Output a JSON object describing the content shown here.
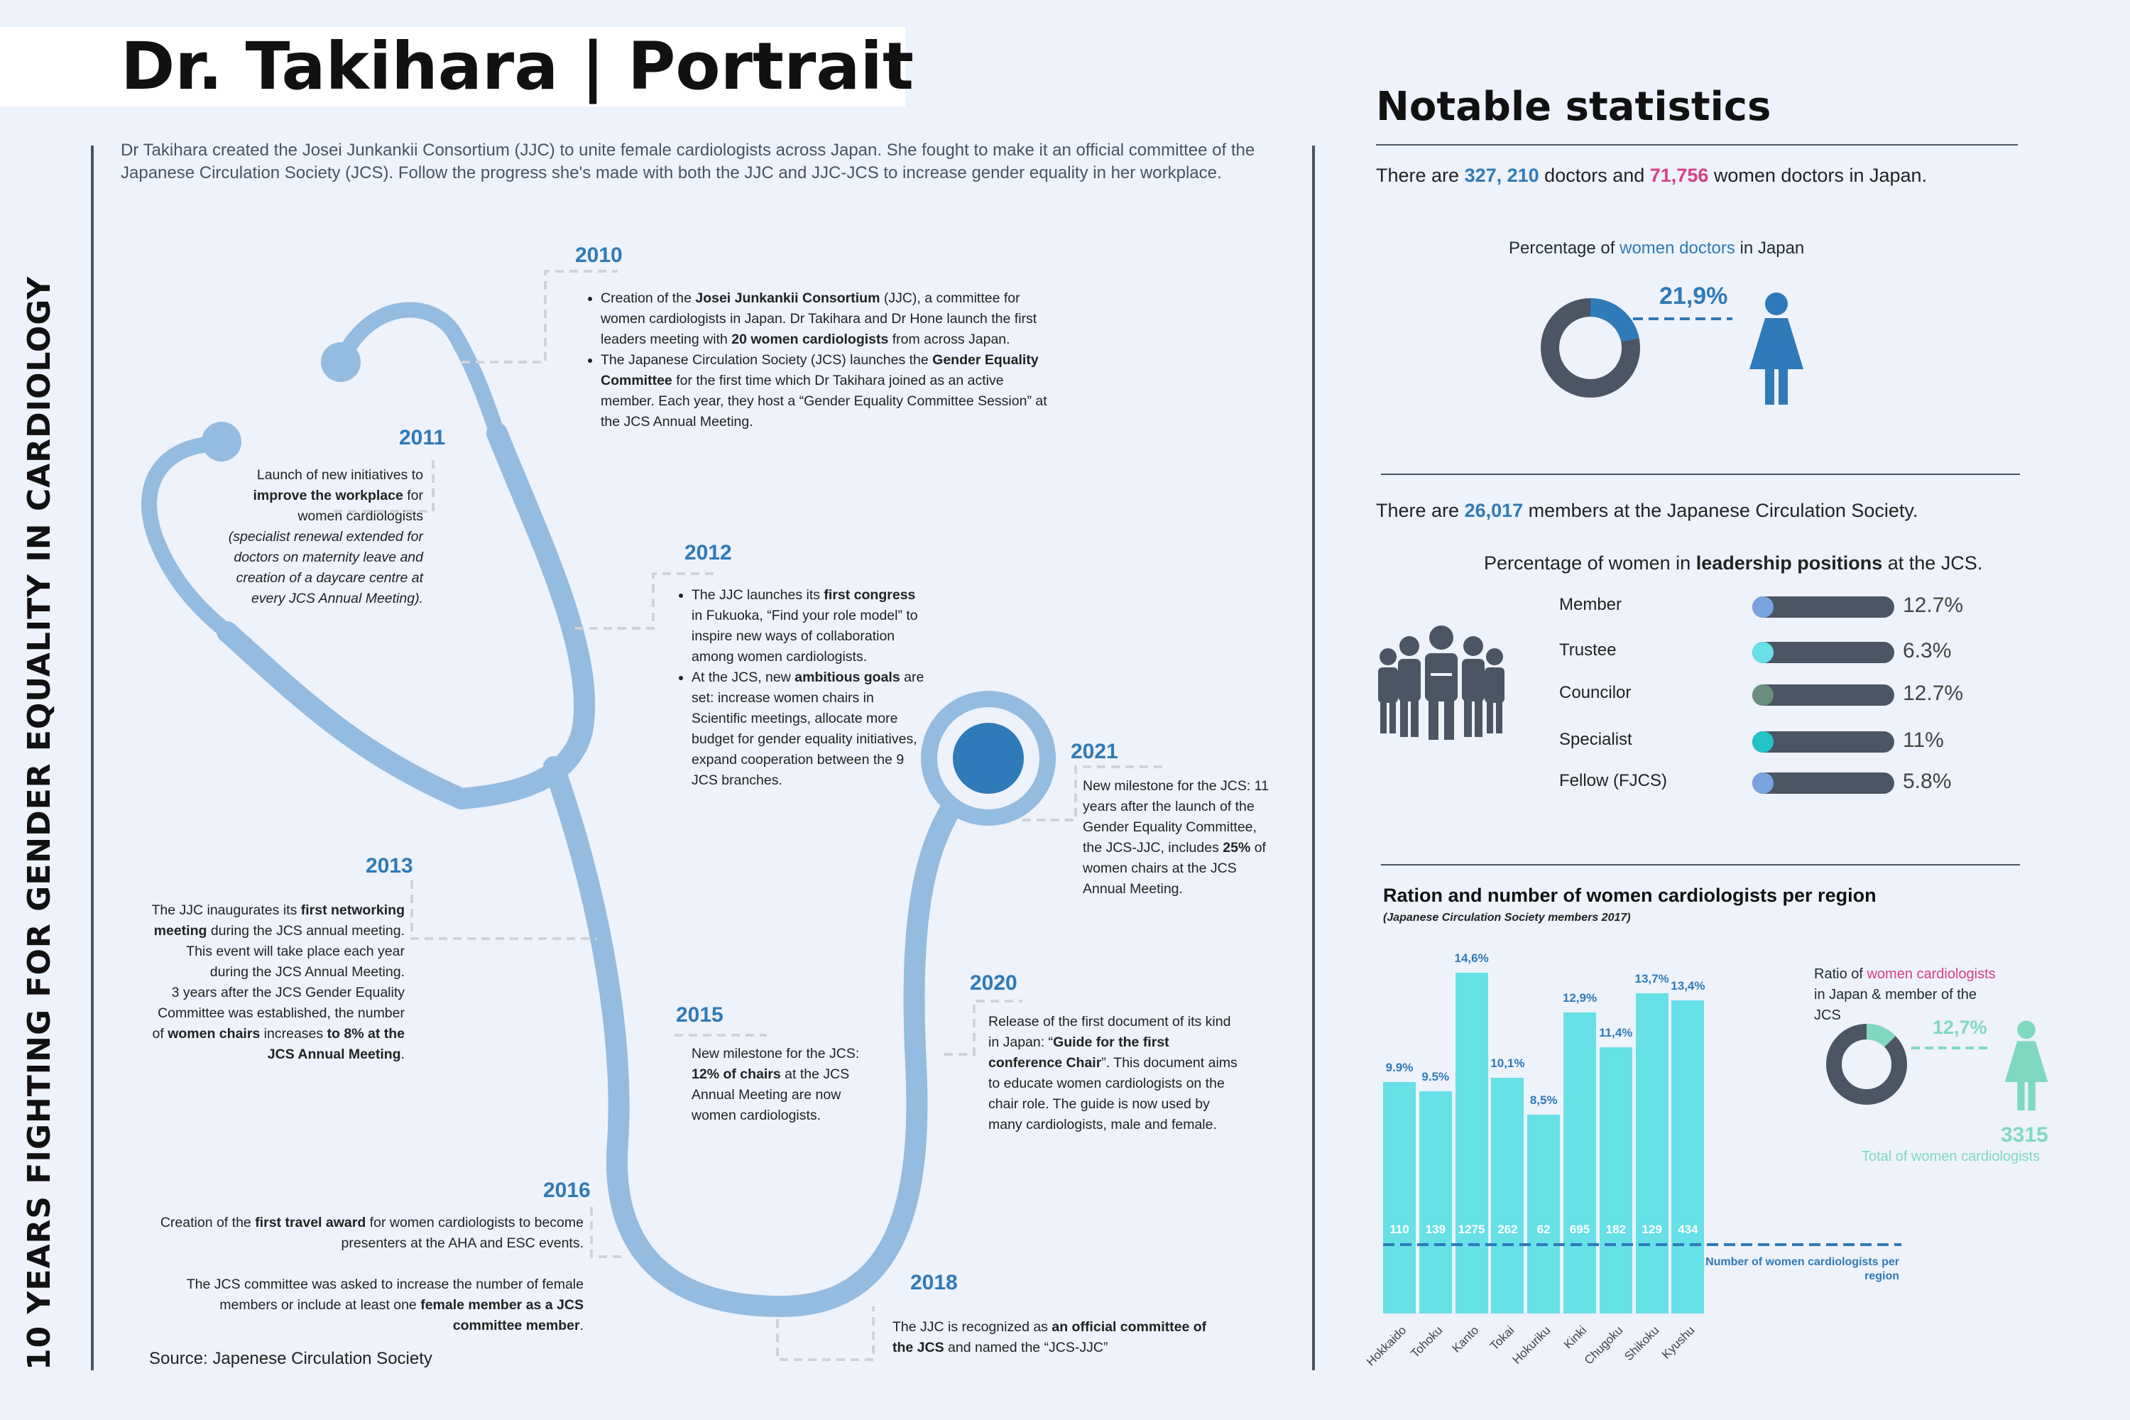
{
  "header": {
    "title": "Dr. Takihara | Portrait",
    "intro": "Dr Takihara created the Josei Junkankii Consortium (JJC) to unite female cardiologists across Japan. She fought to make it an official committee of the Japanese Circulation Society (JCS). Follow the progress she's made with both the JJC and JJC-JCS to increase gender equality in her workplace."
  },
  "vertical_title": "10 YEARS FIGHTING FOR GENDER EQUALITY IN CARDIOLOGY",
  "timeline": {
    "y2010": {
      "year": "2010",
      "b1_a": "Creation of the ",
      "b1_b": "Josei Junkankii Consortium",
      "b1_c": " (JJC), a committee for women cardiologists in Japan. Dr Takihara and Dr Hone launch the first leaders meeting with ",
      "b1_d": "20 women cardiologists",
      "b1_e": " from across Japan.",
      "b2_a": "The Japanese Circulation Society (JCS) launches the ",
      "b2_b": "Gender Equality Committee",
      "b2_c": " for the first time which Dr Takihara joined as an active member. Each year, they host a “Gender Equality Committee Session” at the JCS Annual Meeting."
    },
    "y2011": {
      "year": "2011",
      "a": "Launch of new initiatives to ",
      "b": "improve the workplace",
      "c": " for women cardiologists",
      "d": "(specialist renewal extended for doctors on maternity leave and creation of a daycare centre at every JCS Annual Meeting)."
    },
    "y2012": {
      "year": "2012",
      "b1_a": "The JJC launches its ",
      "b1_b": "first congress",
      "b1_c": " in Fukuoka, “Find your role model” to inspire new ways of collaboration among women cardiologists.",
      "b2_a": "At the JCS, new ",
      "b2_b": "ambitious goals",
      "b2_c": " are set: increase women chairs in Scientific meetings, allocate more budget for gender equality initiatives, expand cooperation between the 9 JCS branches."
    },
    "y2013": {
      "year": "2013",
      "a": "The JJC inaugurates its ",
      "b": "first networking meeting",
      "c": " during the JCS annual meeting. This event will take place each year during the JCS Annual Meeting.",
      "d": "3 years after the JCS Gender Equality Committee was established, the number of ",
      "e": "women chairs",
      "f": " increases ",
      "g": "to 8% at the JCS Annual Meeting",
      "h": "."
    },
    "y2015": {
      "year": "2015",
      "a": "New milestone for the JCS: ",
      "b": "12% of chairs",
      "c": " at the JCS Annual Meeting are now women cardiologists."
    },
    "y2016": {
      "year": "2016",
      "a": "Creation of the ",
      "b": "first travel award",
      "c": " for women cardiologists to become presenters at the AHA and ESC events.",
      "d": "The JCS committee was asked to increase the number of female members or include at least one ",
      "e": "female member as a JCS committee member",
      "f": "."
    },
    "y2018": {
      "year": "2018",
      "a": "The JJC is recognized as ",
      "b": "an official committee of the JCS",
      "c": " and named the “JCS-JJC”"
    },
    "y2020": {
      "year": "2020",
      "a": "Release of the first document of its kind in Japan: “",
      "b": "Guide for the first conference Chair",
      "c": "”. This document aims to educate women cardiologists on the chair role. The guide is now used by many cardiologists, male and female."
    },
    "y2021": {
      "year": "2021",
      "a": "New milestone for the JCS: 11 years after the launch of the Gender Equality Committee, the JCS-JJC, includes ",
      "b": "25%",
      "c": " of women chairs at the JCS Annual Meeting."
    }
  },
  "source": "Source: Japenese Circulation Society",
  "stats": {
    "title": "Notable statistics",
    "doctors_line": {
      "a": "There are ",
      "doctors": "327, 210",
      "b": " doctors and ",
      "women": "71,756",
      "c": " women doctors in Japan."
    },
    "women_doctors": {
      "label_a": "Percentage of ",
      "label_b": "women doctors",
      "label_c": " in Japan",
      "value": "21,9%",
      "fraction": 0.219,
      "color": "#2f7ab8"
    },
    "members_line": {
      "a": "There are ",
      "members": "26,017",
      "b": " members at the Japanese Circulation Society."
    },
    "leadership": {
      "title_a": "Percentage of women in ",
      "title_b": "leadership positions",
      "title_c": " at the JCS.",
      "rows": [
        {
          "label": "Member",
          "value": "12.7%",
          "dot": "#7aa2e0"
        },
        {
          "label": "Trustee",
          "value": "6.3%",
          "dot": "#67e0e8"
        },
        {
          "label": "Councilor",
          "value": "12.7%",
          "dot": "#6b8f7e"
        },
        {
          "label": "Specialist",
          "value": "11%",
          "dot": "#22c2c7"
        },
        {
          "label": "Fellow (FJCS)",
          "value": "5.8%",
          "dot": "#7aa2e0"
        }
      ]
    },
    "ratio": {
      "label_a": "Ratio of ",
      "label_b": "women cardiologists",
      "label_c": " in Japan & member of the JCS",
      "value": "12,7%",
      "fraction": 0.127,
      "total": "3315",
      "total_label": "Total of women cardiologists",
      "color": "#7fd9c0"
    }
  },
  "chart_data": {
    "type": "bar",
    "title": "Ration and number of women cardiologists per region",
    "subtitle": "(Japanese Circulation Society members 2017)",
    "categories": [
      "Hokkaido",
      "Tohoku",
      "Kanto",
      "Tokai",
      "Hokuriku",
      "Kinki",
      "Chugoku",
      "Shikoku",
      "Kyushu"
    ],
    "percent_labels": [
      "9.9%",
      "9.5%",
      "14,6%",
      "10,1%",
      "8,5%",
      "12,9%",
      "11,4%",
      "13,7%",
      "13,4%"
    ],
    "values": [
      9.9,
      9.5,
      14.6,
      10.1,
      8.5,
      12.9,
      11.4,
      13.7,
      13.4
    ],
    "counts": [
      "110",
      "139",
      "1275",
      "262",
      "62",
      "695",
      "182",
      "129",
      "434"
    ],
    "ylim": [
      0,
      15
    ],
    "annotation": "Number of women cardiologists per region",
    "bar_color": "#67e0e8"
  }
}
